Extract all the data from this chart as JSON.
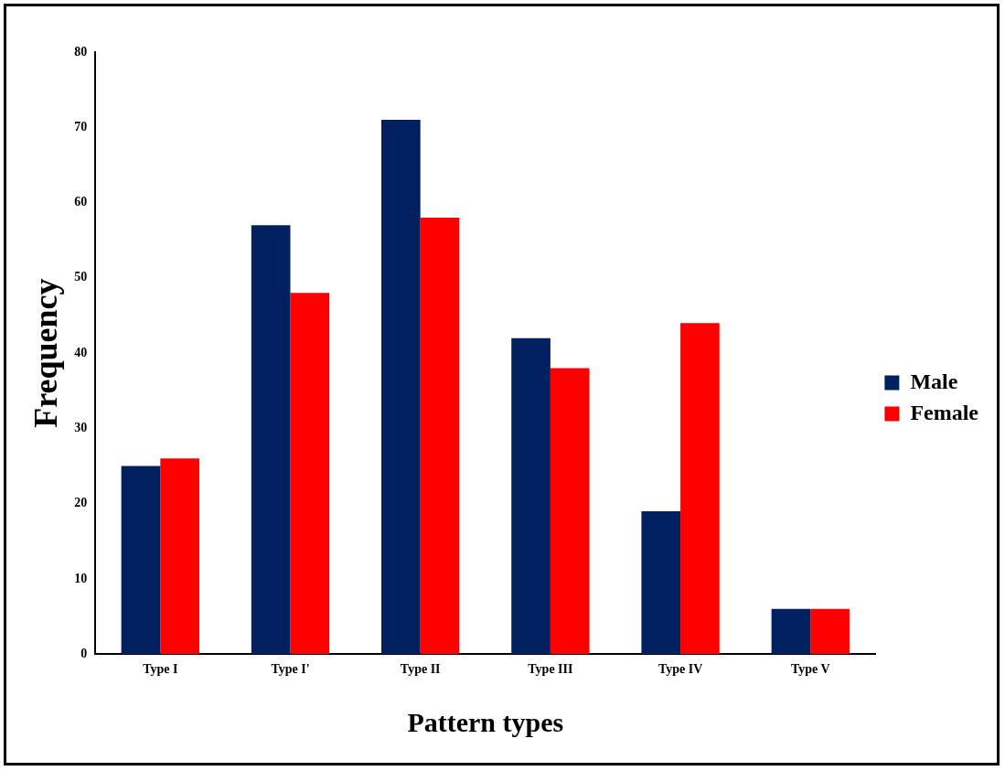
{
  "chart_data": {
    "type": "bar",
    "xlabel": "Pattern types",
    "ylabel": "Frequency",
    "categories": [
      "Type I",
      "Type I'",
      "Type II",
      "Type III",
      "Type IV",
      "Type V"
    ],
    "series": [
      {
        "name": "Male",
        "color": "#002060",
        "values": [
          25,
          57,
          71,
          42,
          19,
          6
        ]
      },
      {
        "name": "Female",
        "color": "#ff0000",
        "values": [
          26,
          48,
          58,
          38,
          44,
          6
        ]
      }
    ],
    "ylim": [
      0,
      80
    ],
    "yticks": [
      0,
      10,
      20,
      30,
      40,
      50,
      60,
      70,
      80
    ],
    "grid": false,
    "legend": "right"
  }
}
